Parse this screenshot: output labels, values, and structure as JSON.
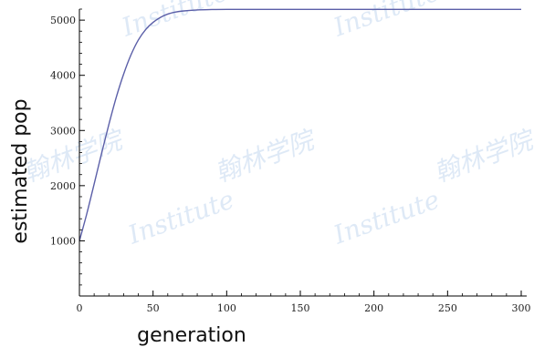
{
  "chart_data": {
    "type": "line",
    "title": "",
    "xlabel": "generation",
    "ylabel": "estimated pop",
    "xlim": [
      0,
      300
    ],
    "ylim": [
      0,
      5200
    ],
    "x_ticks": [
      0,
      50,
      100,
      150,
      200,
      250,
      300
    ],
    "y_ticks": [
      1000,
      2000,
      3000,
      4000,
      5000
    ],
    "grid": false,
    "legend": "none",
    "series": [
      {
        "color": "#5b5fa8",
        "x": [
          0,
          5,
          10,
          15,
          20,
          25,
          30,
          35,
          40,
          45,
          50,
          55,
          60,
          65,
          70,
          80,
          90,
          100,
          150,
          200,
          250,
          300
        ],
        "y": [
          1000,
          1490,
          2030,
          2580,
          3110,
          3600,
          4020,
          4370,
          4640,
          4830,
          4960,
          5050,
          5110,
          5145,
          5165,
          5185,
          5192,
          5195,
          5195,
          5195,
          5195,
          5195
        ]
      }
    ]
  },
  "watermarks": [
    "Institute",
    "翰林学院"
  ]
}
